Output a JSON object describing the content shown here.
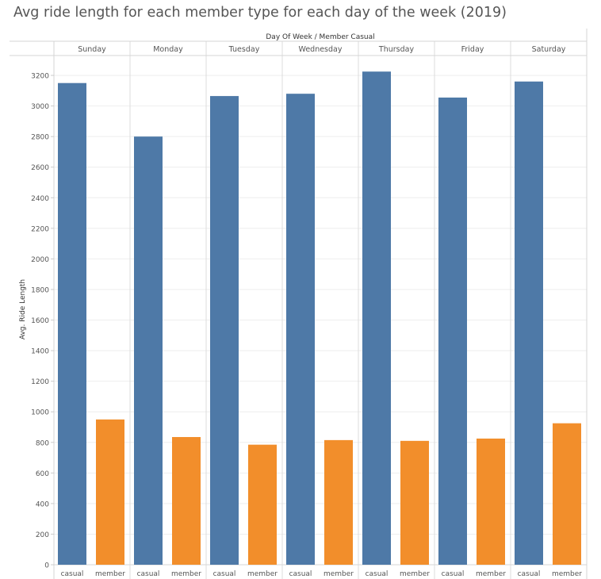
{
  "title": "Avg ride length for each member type for each day of the week (2019)",
  "chart_data": {
    "type": "bar",
    "title": "Avg ride length for each member type for each day of the week (2019)",
    "column_header": "Day Of Week / Member Casual",
    "ylabel": "Avg. Ride Length",
    "xlabel": "",
    "ylim": [
      0,
      3330
    ],
    "yticks": [
      0,
      200,
      400,
      600,
      800,
      1000,
      1200,
      1400,
      1600,
      1800,
      2000,
      2200,
      2400,
      2600,
      2800,
      3000,
      3200
    ],
    "grid": true,
    "categories": [
      "Sunday",
      "Monday",
      "Tuesday",
      "Wednesday",
      "Thursday",
      "Friday",
      "Saturday"
    ],
    "series": [
      {
        "name": "casual",
        "color": "#4e79a7",
        "values": [
          3150,
          2800,
          3065,
          3080,
          3225,
          3055,
          3160
        ]
      },
      {
        "name": "member",
        "color": "#f28e2b",
        "values": [
          950,
          835,
          785,
          815,
          810,
          825,
          925
        ]
      }
    ]
  }
}
